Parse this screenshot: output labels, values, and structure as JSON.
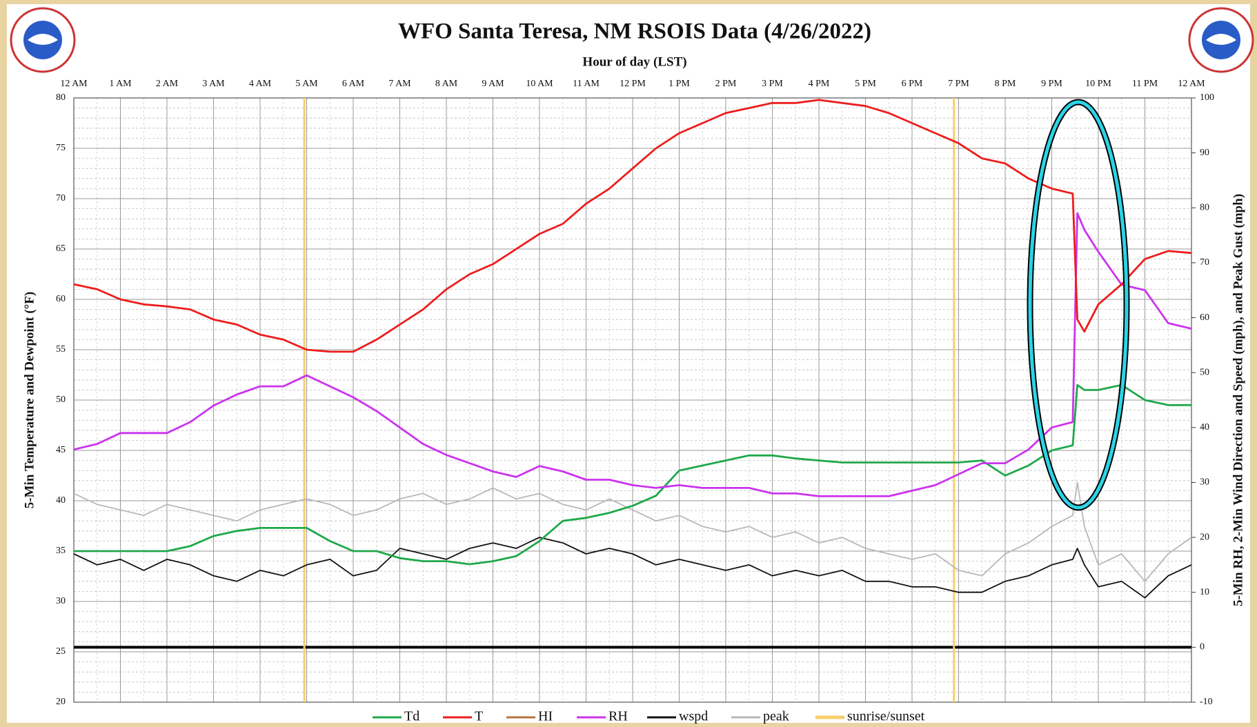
{
  "chart_data": {
    "type": "line",
    "title": "WFO Santa Teresa, NM RSOIS Data (4/26/2022)",
    "xlabel": "Hour of day (LST)",
    "ylabel": "5-Min Temperature and Dewpoint (°F)",
    "y2label": "5-Min RH, 2-Min Wind Direction and Speed (mph), and Peak Gust (mph)",
    "x": [
      0,
      0.5,
      1,
      1.5,
      2,
      2.5,
      3,
      3.5,
      4,
      4.5,
      5,
      5.5,
      6,
      6.5,
      7,
      7.5,
      8,
      8.5,
      9,
      9.5,
      10,
      10.5,
      11,
      11.5,
      12,
      12.5,
      13,
      13.5,
      14,
      14.5,
      15,
      15.5,
      16,
      16.5,
      17,
      17.5,
      18,
      18.5,
      19,
      19.5,
      20,
      20.5,
      21,
      21.45,
      21.55,
      21.7,
      22,
      22.5,
      23,
      23.5,
      24
    ],
    "xlim": [
      0,
      24
    ],
    "xticks": [
      {
        "value": 0,
        "label": "12 AM"
      },
      {
        "value": 1,
        "label": "1 AM"
      },
      {
        "value": 2,
        "label": "2 AM"
      },
      {
        "value": 3,
        "label": "3 AM"
      },
      {
        "value": 4,
        "label": "4 AM"
      },
      {
        "value": 5,
        "label": "5 AM"
      },
      {
        "value": 6,
        "label": "6 AM"
      },
      {
        "value": 7,
        "label": "7 AM"
      },
      {
        "value": 8,
        "label": "8 AM"
      },
      {
        "value": 9,
        "label": "9 AM"
      },
      {
        "value": 10,
        "label": "10 AM"
      },
      {
        "value": 11,
        "label": "11 AM"
      },
      {
        "value": 12,
        "label": "12 PM"
      },
      {
        "value": 13,
        "label": "1 PM"
      },
      {
        "value": 14,
        "label": "2 PM"
      },
      {
        "value": 15,
        "label": "3 PM"
      },
      {
        "value": 16,
        "label": "4 PM"
      },
      {
        "value": 17,
        "label": "5 PM"
      },
      {
        "value": 18,
        "label": "6 PM"
      },
      {
        "value": 19,
        "label": "7 PM"
      },
      {
        "value": 20,
        "label": "8 PM"
      },
      {
        "value": 21,
        "label": "9 PM"
      },
      {
        "value": 22,
        "label": "10 PM"
      },
      {
        "value": 23,
        "label": "11 PM"
      },
      {
        "value": 24,
        "label": "12 AM"
      }
    ],
    "ylim": [
      20,
      80
    ],
    "yticks": [
      20,
      25,
      30,
      35,
      40,
      45,
      50,
      55,
      60,
      65,
      70,
      75,
      80
    ],
    "y2lim": [
      -10,
      100
    ],
    "y2ticks": [
      -10,
      0,
      10,
      20,
      30,
      40,
      50,
      60,
      70,
      80,
      90,
      100
    ],
    "grid": true,
    "series": [
      {
        "name": "Td",
        "color": "#1fa84a",
        "values": [
          35,
          35,
          35,
          35,
          35,
          35.5,
          36.5,
          37,
          37.3,
          37.3,
          37.3,
          36,
          35,
          35,
          34.3,
          34,
          34,
          33.7,
          34,
          34.5,
          36,
          38,
          38.3,
          38.8,
          39.5,
          40.5,
          43,
          43.5,
          44,
          44.5,
          44.5,
          44.2,
          44,
          43.8,
          43.8,
          43.8,
          43.8,
          43.8,
          43.8,
          44,
          42.5,
          43.5,
          45,
          45.5,
          51.5,
          51,
          51,
          51.5,
          50,
          49.5,
          49.5
        ]
      },
      {
        "name": "T",
        "color": "#ee1c1c",
        "values": [
          61.5,
          61,
          60,
          59.5,
          59.3,
          59,
          58,
          57.5,
          56.5,
          56,
          55,
          54.8,
          54.8,
          56,
          57.5,
          59,
          61,
          62.5,
          63.5,
          65,
          66.5,
          67.5,
          69.5,
          71,
          73,
          75,
          76.5,
          77.5,
          78.5,
          79,
          79.5,
          79.5,
          79.8,
          79.5,
          79.2,
          78.5,
          77.5,
          76.5,
          75.5,
          74,
          73.5,
          72,
          71,
          70.5,
          58,
          56.8,
          59.5,
          61.5,
          64,
          64.8,
          64.6
        ]
      },
      {
        "name": "HI",
        "color": "#b5733a",
        "values": [
          null,
          null,
          null,
          null,
          null,
          null,
          null,
          null,
          null,
          null,
          null,
          null,
          null,
          null,
          null,
          null,
          null,
          null,
          null,
          null,
          null,
          null,
          null,
          null,
          null,
          null,
          null,
          null,
          null,
          null,
          null,
          null,
          null,
          null,
          null,
          null,
          null,
          null,
          null,
          null,
          null,
          null,
          null,
          null,
          null,
          null,
          null,
          null,
          null,
          null,
          null
        ]
      },
      {
        "name": "RH",
        "color": "#cc33ee",
        "axis": "y2",
        "values": [
          36,
          37,
          39,
          39,
          39,
          41,
          44,
          46,
          47.5,
          47.5,
          49.5,
          47.5,
          45.5,
          43,
          40,
          37,
          35,
          33.5,
          32,
          31,
          33,
          32,
          30.5,
          30.5,
          29.5,
          29,
          29.5,
          29,
          29,
          29,
          28,
          28,
          27.5,
          27.5,
          27.5,
          27.5,
          28.5,
          29.5,
          31.5,
          33.5,
          33.5,
          36,
          40,
          41,
          79,
          76,
          72,
          66,
          65,
          59,
          58
        ]
      },
      {
        "name": "wspd",
        "color": "#111111",
        "axis": "y2",
        "values": [
          17,
          15,
          16,
          14,
          16,
          15,
          13,
          12,
          14,
          13,
          15,
          16,
          13,
          14,
          18,
          17,
          16,
          18,
          19,
          18,
          20,
          19,
          17,
          18,
          17,
          15,
          16,
          15,
          14,
          15,
          13,
          14,
          13,
          14,
          12,
          12,
          11,
          11,
          10,
          10,
          12,
          13,
          15,
          16,
          18,
          15,
          11,
          12,
          9,
          13,
          15
        ]
      },
      {
        "name": "peak",
        "color": "#b8b8b8",
        "axis": "y2",
        "values": [
          28,
          26,
          25,
          24,
          26,
          25,
          24,
          23,
          25,
          26,
          27,
          26,
          24,
          25,
          27,
          28,
          26,
          27,
          29,
          27,
          28,
          26,
          25,
          27,
          25,
          23,
          24,
          22,
          21,
          22,
          20,
          21,
          19,
          20,
          18,
          17,
          16,
          17,
          14,
          13,
          17,
          19,
          22,
          24,
          30,
          22,
          15,
          17,
          12,
          17,
          20
        ]
      }
    ],
    "sun_lines": {
      "name": "sunrise/sunset",
      "color": "#f7cf6a",
      "x": [
        4.95,
        18.9
      ]
    }
  }
}
